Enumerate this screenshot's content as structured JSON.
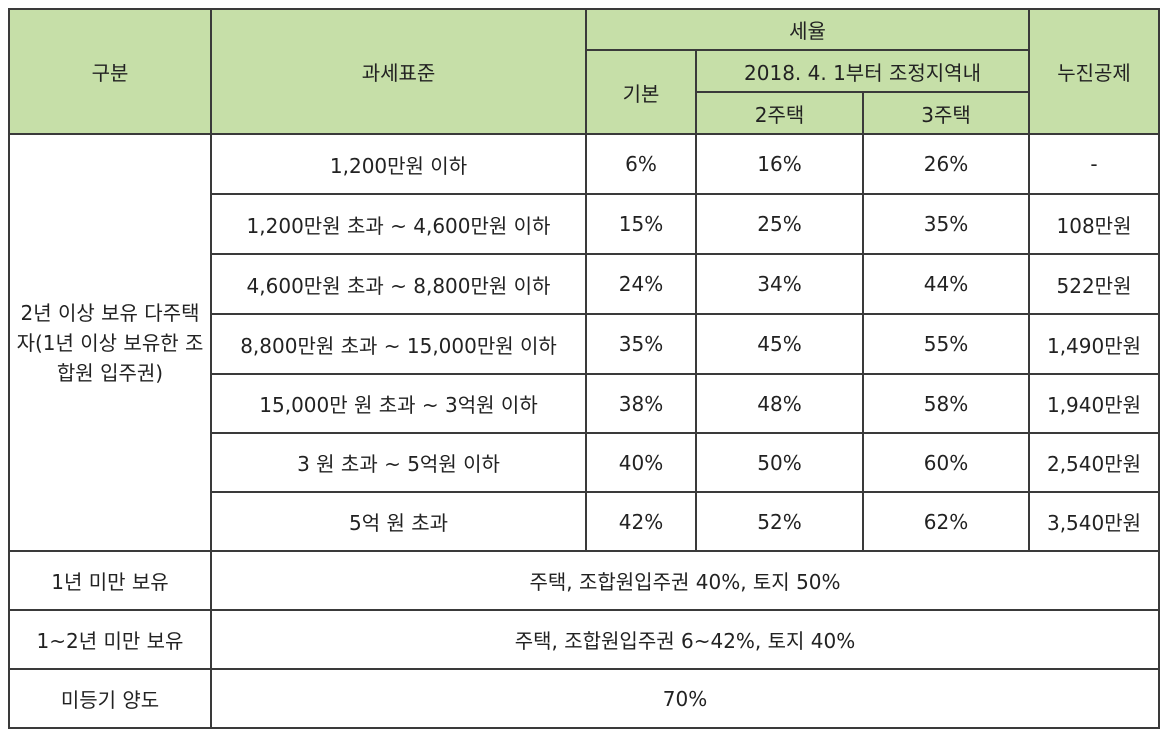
{
  "headers": {
    "category": "구분",
    "tax_base": "과세표준",
    "tax_rate": "세율",
    "basic": "기본",
    "adjusted_region": "2018. 4. 1부터 조정지역내",
    "two_houses": "2주택",
    "three_houses": "3주택",
    "progressive_deduction": "누진공제"
  },
  "group_label": "2년 이상 보유 다주택자(1년 이상 보유한 조합원 입주권)",
  "rows": [
    {
      "base": "1,200만원 이하",
      "basic": "6%",
      "two": "16%",
      "three": "26%",
      "deduction": "-"
    },
    {
      "base": "1,200만원 초과 ~ 4,600만원 이하",
      "basic": "15%",
      "two": "25%",
      "three": "35%",
      "deduction": "108만원"
    },
    {
      "base": "4,600만원 초과 ~ 8,800만원 이하",
      "basic": "24%",
      "two": "34%",
      "three": "44%",
      "deduction": "522만원"
    },
    {
      "base": "8,800만원 초과 ~ 15,000만원 이하",
      "basic": "35%",
      "two": "45%",
      "three": "55%",
      "deduction": "1,490만원"
    },
    {
      "base": "15,000만 원 초과 ~ 3억원 이하",
      "basic": "38%",
      "two": "48%",
      "three": "58%",
      "deduction": "1,940만원"
    },
    {
      "base": "3 원 초과 ~ 5억원 이하",
      "basic": "40%",
      "two": "50%",
      "three": "60%",
      "deduction": "2,540만원"
    },
    {
      "base": "5억 원 초과",
      "basic": "42%",
      "two": "52%",
      "three": "62%",
      "deduction": "3,540만원"
    }
  ],
  "bottom_rows": [
    {
      "label": "1년 미만 보유",
      "value": "주택, 조합원입주권 40%, 토지 50%"
    },
    {
      "label": "1~2년 미만 보유",
      "value": "주택, 조합원입주권 6~42%, 토지 40%"
    },
    {
      "label": "미등기 양도",
      "value": "70%"
    }
  ]
}
